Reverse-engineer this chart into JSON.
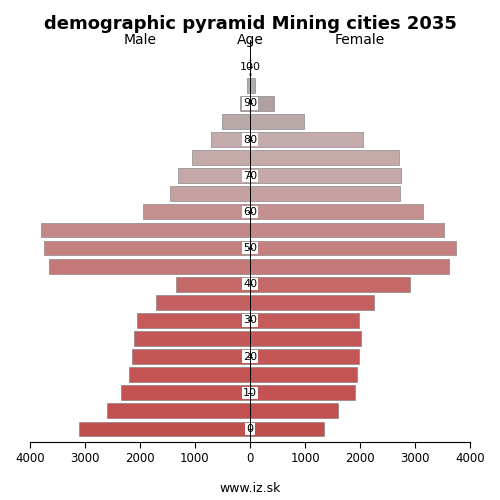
{
  "title": "demographic pyramid Mining cities 2035",
  "ages": [
    0,
    5,
    10,
    15,
    20,
    25,
    30,
    35,
    40,
    45,
    50,
    55,
    60,
    65,
    70,
    75,
    80,
    85,
    90,
    95,
    100
  ],
  "male_values": [
    3100,
    2600,
    2350,
    2200,
    2150,
    2100,
    2050,
    1700,
    1350,
    3650,
    3750,
    3800,
    1950,
    1450,
    1300,
    1050,
    700,
    500,
    180,
    50,
    15
  ],
  "female_values": [
    1350,
    1600,
    1900,
    1950,
    1980,
    2020,
    1980,
    2250,
    2900,
    3620,
    3750,
    3530,
    3150,
    2720,
    2750,
    2700,
    2050,
    980,
    430,
    90,
    25
  ],
  "bar_colors": [
    "#c0504d",
    "#c25050",
    "#c45252",
    "#c45454",
    "#c45656",
    "#c45858",
    "#c45a5a",
    "#c46060",
    "#c56868",
    "#c57878",
    "#c58080",
    "#c58888",
    "#c59090",
    "#c5a0a0",
    "#c5a8a8",
    "#c5aaaa",
    "#c5acac",
    "#b8a8a8",
    "#b0a0a0",
    "#adadad",
    "#b0b0b0"
  ],
  "xlim": 4000,
  "xtick_labels": [
    "4000",
    "3000",
    "2000",
    "1000",
    "0",
    "1000",
    "2000",
    "3000",
    "4000"
  ],
  "xtick_vals": [
    -4000,
    -3000,
    -2000,
    -1000,
    0,
    1000,
    2000,
    3000,
    4000
  ],
  "label_male": "Male",
  "label_female": "Female",
  "label_age": "Age",
  "title_fontsize": 13,
  "footer": "www.iz.sk",
  "bar_height": 0.82,
  "edgecolor": "#777777",
  "edgewidth": 0.4,
  "bg_color": "#ffffff"
}
